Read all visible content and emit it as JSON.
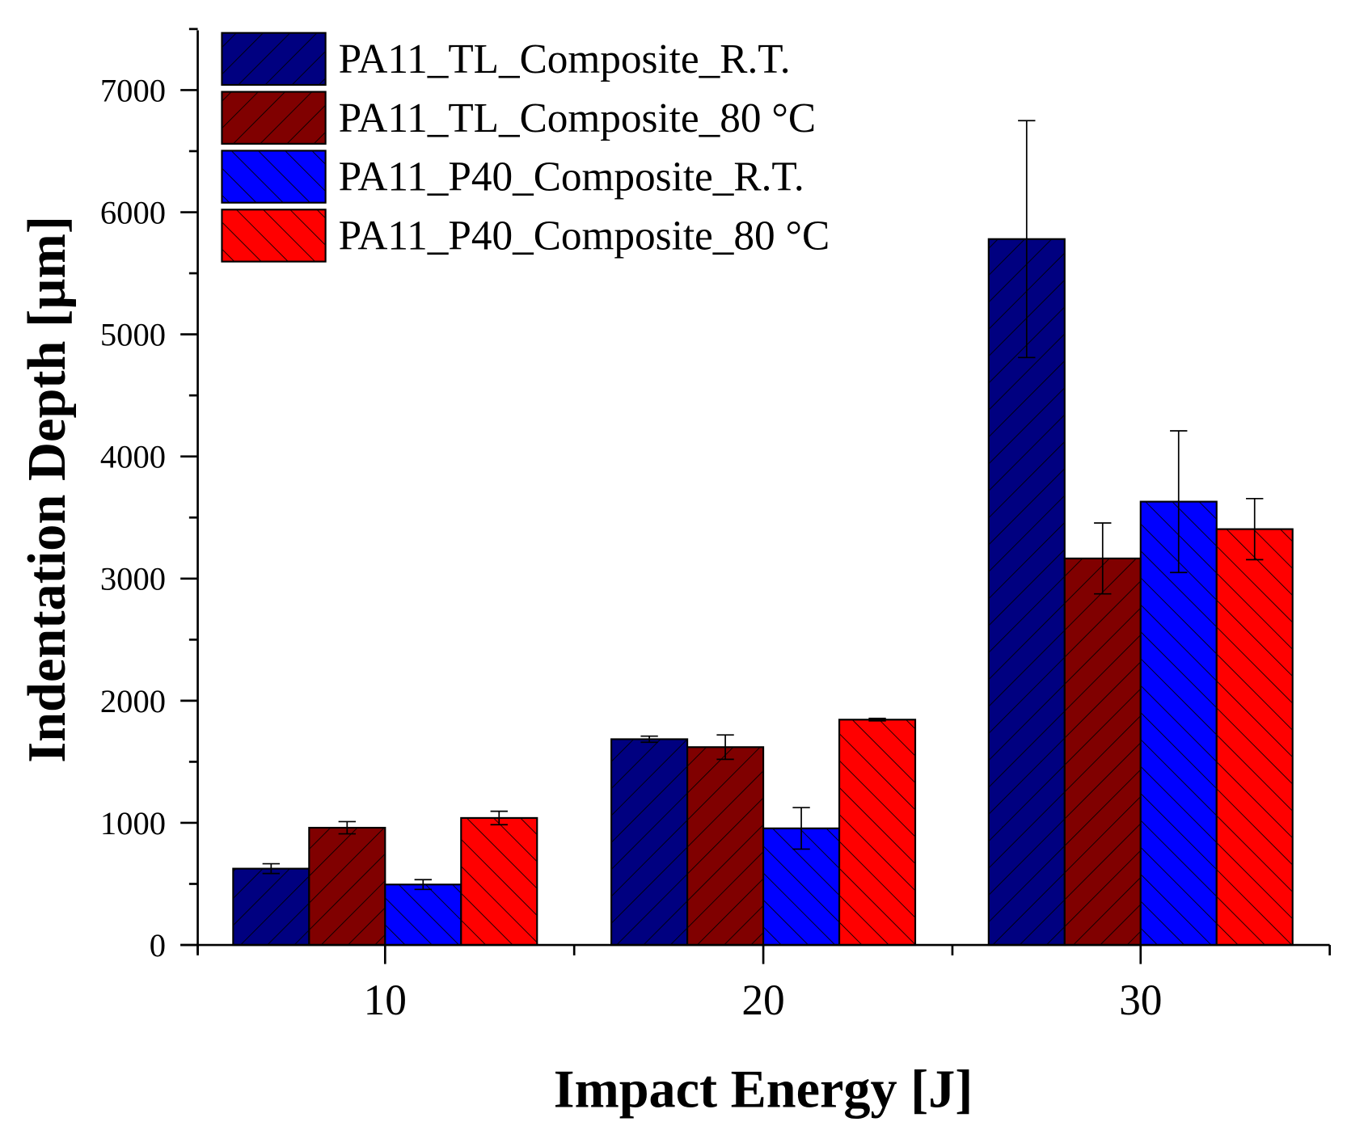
{
  "chart_data": {
    "type": "bar",
    "title": "",
    "xlabel": "Impact Energy [J]",
    "ylabel": "Indentation Depth [µm]",
    "categories": [
      "10",
      "20",
      "30"
    ],
    "ylim": [
      0,
      7500
    ],
    "yticks": [
      0,
      1000,
      2000,
      3000,
      4000,
      5000,
      6000,
      7000
    ],
    "grid": false,
    "legend_position": "top-left",
    "series": [
      {
        "name": "PA11_TL_Composite_R.T.",
        "color": "#000080",
        "hatch": "forward",
        "values": [
          625,
          1685,
          5780
        ],
        "errors": [
          40,
          25,
          970
        ]
      },
      {
        "name": "PA11_TL_Composite_80 °C",
        "color": "#800000",
        "hatch": "forward",
        "values": [
          960,
          1620,
          3165
        ],
        "errors": [
          50,
          100,
          290
        ]
      },
      {
        "name": "PA11_P40_Composite_R.T.",
        "color": "#0000FF",
        "hatch": "back",
        "values": [
          495,
          955,
          3630
        ],
        "errors": [
          40,
          170,
          580
        ]
      },
      {
        "name": "PA11_P40_Composite_80 °C",
        "color": "#FF0000",
        "hatch": "back",
        "values": [
          1040,
          1845,
          3405
        ],
        "errors": [
          55,
          10,
          250
        ]
      }
    ]
  }
}
